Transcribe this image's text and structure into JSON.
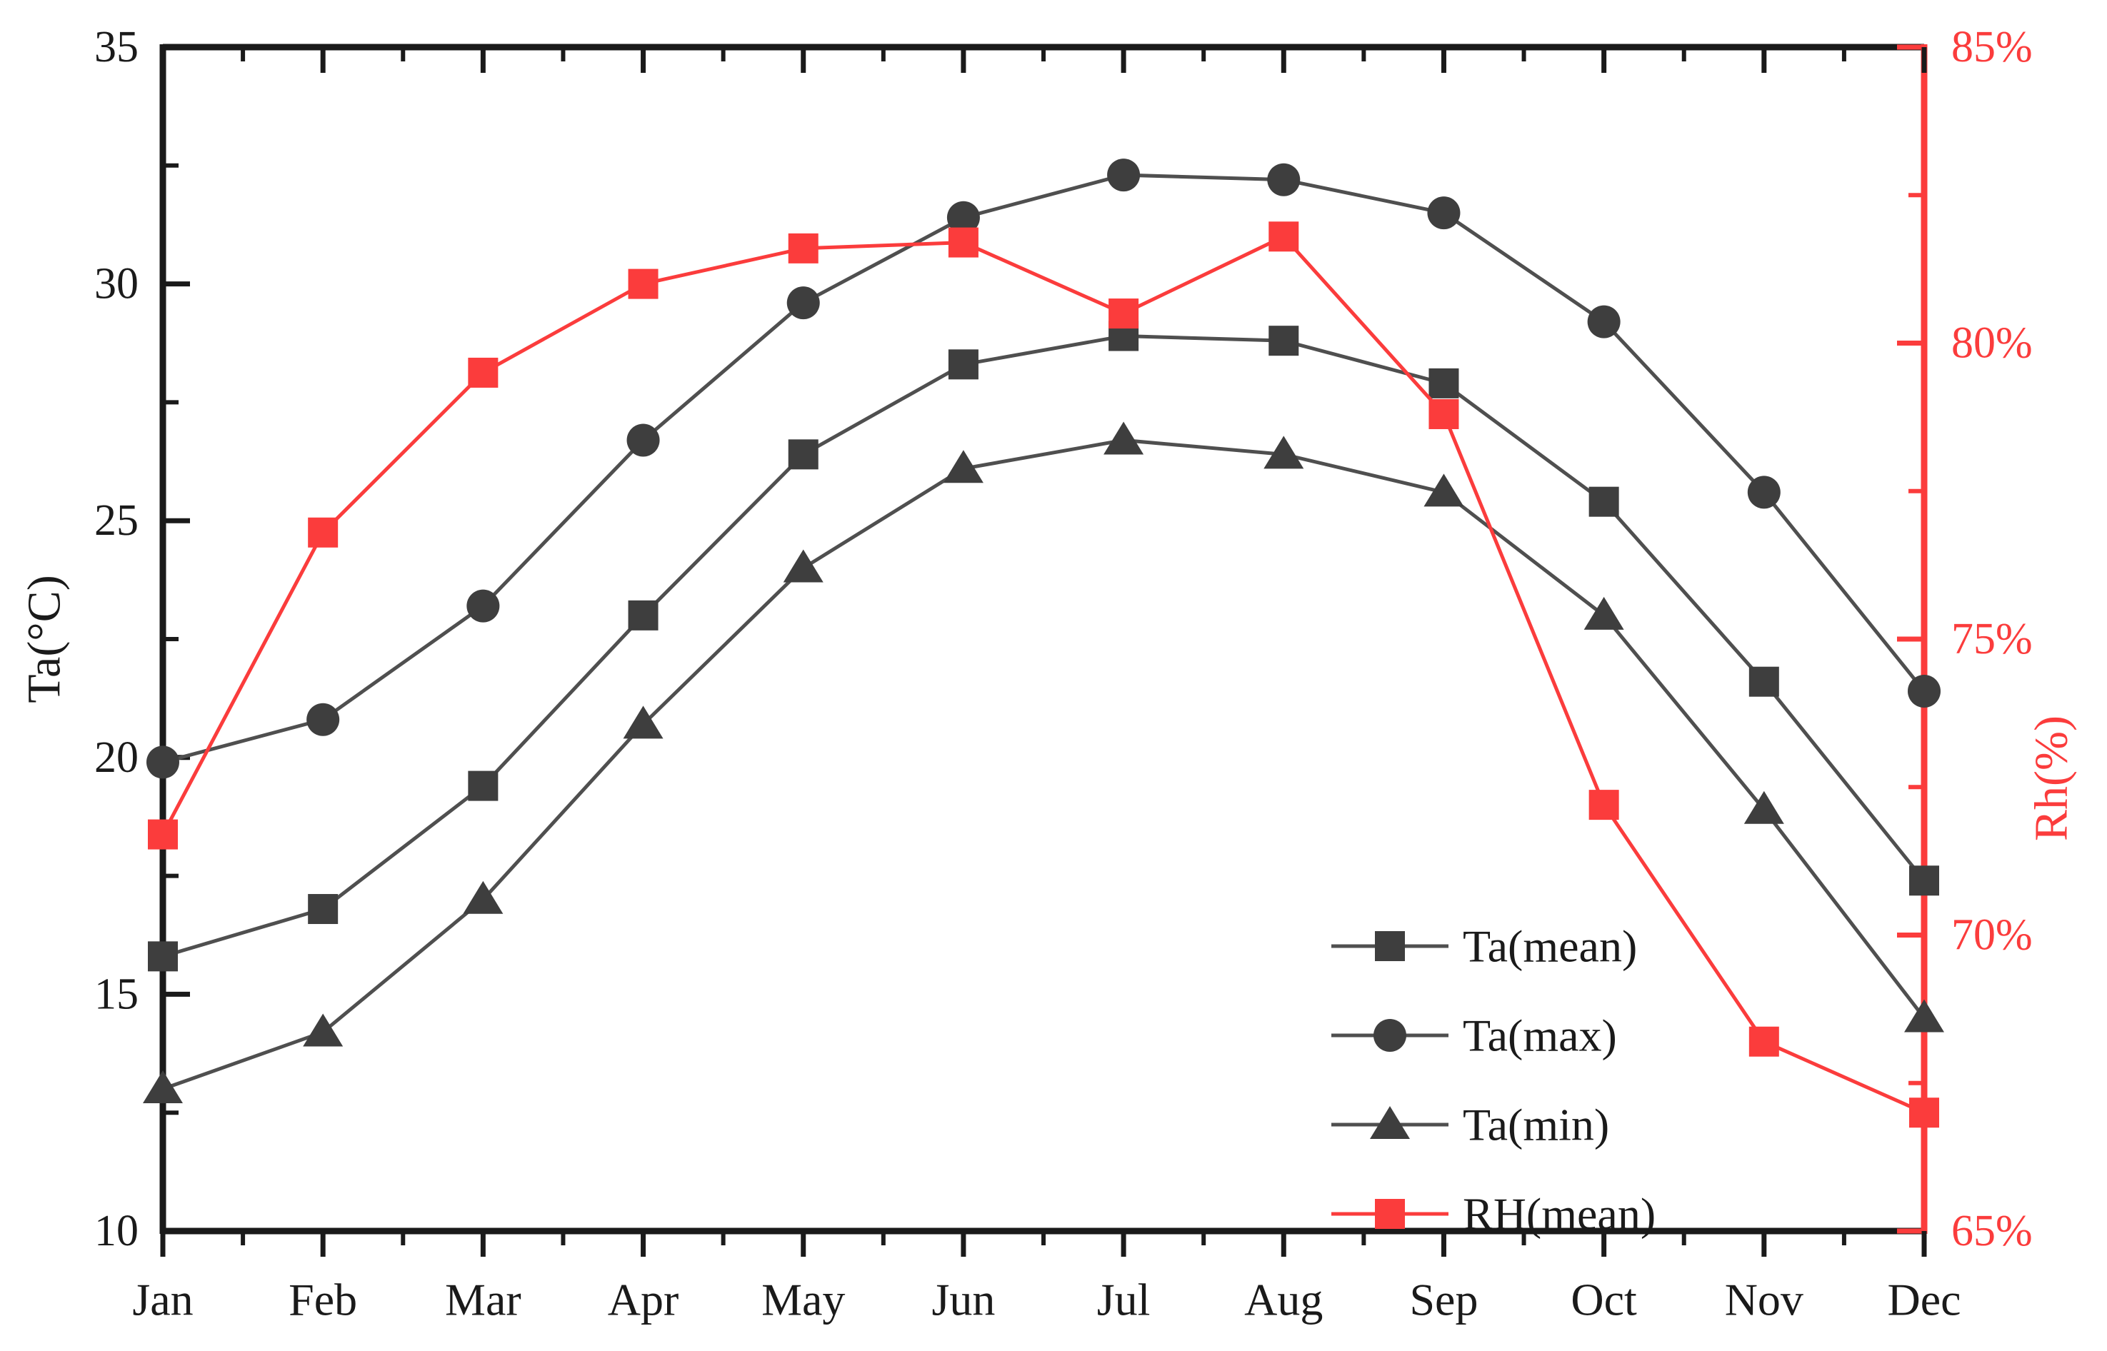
{
  "chart_data": {
    "type": "line",
    "title": "",
    "categories": [
      "Jan",
      "Feb",
      "Mar",
      "Apr",
      "May",
      "Jun",
      "Jul",
      "Aug",
      "Sep",
      "Oct",
      "Nov",
      "Dec"
    ],
    "left_axis": {
      "label": "Ta(°C)",
      "min": 10,
      "max": 35,
      "major_tick_values": [
        35,
        30,
        25,
        20,
        15,
        10
      ],
      "major_tick_labels": [
        "35",
        "30",
        "25",
        "20",
        "15",
        "10"
      ],
      "minor_tick_values": [
        32.5,
        27.5,
        22.5,
        17.5,
        12.5
      ]
    },
    "right_axis": {
      "label": "Rh(%)",
      "min": 65,
      "max": 85,
      "major_tick_values": [
        85,
        80,
        75,
        70,
        65
      ],
      "major_tick_labels": [
        "85%",
        "80%",
        "75%",
        "70%",
        "65%"
      ],
      "minor_tick_values": [
        82.5,
        77.5,
        72.5,
        67.5
      ]
    },
    "x_axis": {
      "minor_ticks_between_categories": true
    },
    "series": [
      {
        "name": "Ta(mean)",
        "axis": "left",
        "marker": "square",
        "marker_color": "#3e3e3e",
        "line_color": "#4f4f4f",
        "values": [
          15.8,
          16.8,
          19.4,
          23.0,
          26.4,
          28.3,
          28.9,
          28.8,
          27.9,
          25.4,
          21.6,
          17.4
        ]
      },
      {
        "name": "Ta(max)",
        "axis": "left",
        "marker": "circle",
        "marker_color": "#3e3e3e",
        "line_color": "#4f4f4f",
        "values": [
          19.9,
          20.8,
          23.2,
          26.7,
          29.6,
          31.4,
          32.3,
          32.2,
          31.5,
          29.2,
          25.6,
          21.4
        ]
      },
      {
        "name": "Ta(min)",
        "axis": "left",
        "marker": "triangle",
        "marker_color": "#3e3e3e",
        "line_color": "#4f4f4f",
        "values": [
          13.0,
          14.2,
          17.0,
          20.7,
          24.0,
          26.1,
          26.7,
          26.4,
          25.6,
          23.0,
          18.9,
          14.5
        ]
      },
      {
        "name": "RH(mean)",
        "axis": "right",
        "marker": "square",
        "marker_color": "#fb3c3c",
        "line_color": "#fb3c3c",
        "values": [
          71.7,
          76.8,
          79.5,
          81.0,
          81.6,
          81.7,
          80.5,
          81.8,
          78.8,
          72.2,
          68.2,
          67.0
        ]
      }
    ],
    "legend": {
      "position": "inside-bottom-right",
      "entries": [
        "Ta(mean)",
        "Ta(max)",
        "Ta(min)",
        "RH(mean)"
      ]
    },
    "grid": false,
    "background": "#ffffff",
    "axis_color": "#1a1a1a",
    "right_axis_color": "#fb3c3c"
  }
}
